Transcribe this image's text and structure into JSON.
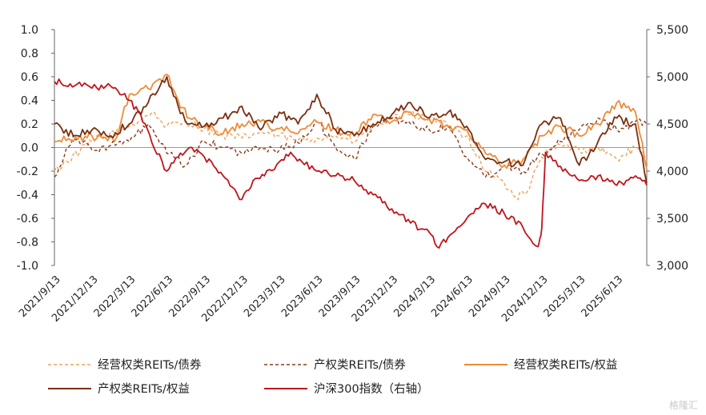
{
  "chart_data": {
    "type": "line",
    "x": [
      "2021/9/13",
      "2021/12/13",
      "2022/3/13",
      "2022/6/13",
      "2022/9/13",
      "2022/12/13",
      "2023/3/13",
      "2023/6/13",
      "2023/9/13",
      "2023/12/13",
      "2024/3/13",
      "2024/6/13",
      "2024/9/13",
      "2024/12/13",
      "2025/3/13",
      "2025/6/13"
    ],
    "x_end": "2025/9/5",
    "y_left": {
      "lim": [
        -1.0,
        1.0
      ],
      "ticks": [
        "1.0",
        "0.8",
        "0.6",
        "0.4",
        "0.2",
        "0.0",
        "-0.2",
        "-0.4",
        "-0.6",
        "-0.8",
        "-1.0"
      ]
    },
    "y_right": {
      "lim": [
        3000,
        5500
      ],
      "ticks": [
        "5,500",
        "5,000",
        "4,500",
        "4,000",
        "3,500",
        "3,000"
      ]
    },
    "legend_position": "bottom",
    "series": [
      {
        "name": "经营权类REITs/债券",
        "axis": "left",
        "color": "#F0A05A",
        "dash": "4,3",
        "values": [
          [
            0,
            -0.2
          ],
          [
            1,
            0.05
          ],
          [
            2,
            0.18
          ],
          [
            2.6,
            0.3
          ],
          [
            3,
            0.18
          ],
          [
            3.5,
            0.22
          ],
          [
            4,
            0.16
          ],
          [
            4.5,
            0.1
          ],
          [
            5,
            0.08
          ],
          [
            5.5,
            0.13
          ],
          [
            6,
            0.1
          ],
          [
            6.5,
            0.06
          ],
          [
            7,
            0.08
          ],
          [
            7.5,
            0.1
          ],
          [
            8,
            0.05
          ],
          [
            8.5,
            0.18
          ],
          [
            9,
            0.24
          ],
          [
            9.5,
            0.28
          ],
          [
            10,
            0.24
          ],
          [
            10.5,
            0.18
          ],
          [
            11,
            0.1
          ],
          [
            11.5,
            -0.2
          ],
          [
            12,
            -0.3
          ],
          [
            12.3,
            -0.42
          ],
          [
            12.6,
            -0.38
          ],
          [
            13,
            -0.08
          ],
          [
            13.5,
            0.02
          ],
          [
            14,
            -0.02
          ],
          [
            14.5,
            0.0
          ],
          [
            15,
            -0.1
          ],
          [
            15.5,
            0.0
          ],
          [
            15.8,
            -0.12
          ]
        ]
      },
      {
        "name": "产权类REITs/债券",
        "axis": "left",
        "color": "#8B3A1A",
        "dash": "4,3",
        "values": [
          [
            0,
            -0.25
          ],
          [
            0.5,
            0.1
          ],
          [
            1,
            -0.02
          ],
          [
            1.5,
            0.02
          ],
          [
            2,
            0.05
          ],
          [
            2.5,
            0.2
          ],
          [
            3,
            -0.05
          ],
          [
            3.5,
            -0.15
          ],
          [
            4,
            0.05
          ],
          [
            4.5,
            0.0
          ],
          [
            5,
            -0.05
          ],
          [
            5.5,
            0.0
          ],
          [
            6,
            -0.02
          ],
          [
            6.5,
            0.04
          ],
          [
            7,
            0.22
          ],
          [
            7.5,
            0.0
          ],
          [
            8,
            -0.1
          ],
          [
            8.5,
            0.18
          ],
          [
            9,
            0.25
          ],
          [
            9.5,
            0.2
          ],
          [
            10,
            0.15
          ],
          [
            10.5,
            0.18
          ],
          [
            11,
            -0.08
          ],
          [
            11.5,
            -0.25
          ],
          [
            12,
            -0.15
          ],
          [
            12.5,
            -0.2
          ],
          [
            13,
            -0.05
          ],
          [
            13.5,
            0.05
          ],
          [
            14,
            0.15
          ],
          [
            14.5,
            0.25
          ],
          [
            15,
            0.15
          ],
          [
            15.5,
            0.22
          ],
          [
            15.8,
            0.2
          ]
        ]
      },
      {
        "name": "经营权类REITs/权益",
        "axis": "left",
        "color": "#EE8B3A",
        "dash": "",
        "values": [
          [
            0,
            0.05
          ],
          [
            1,
            0.1
          ],
          [
            1.6,
            0.05
          ],
          [
            2,
            0.45
          ],
          [
            2.5,
            0.5
          ],
          [
            3,
            0.62
          ],
          [
            3.3,
            0.4
          ],
          [
            3.6,
            0.25
          ],
          [
            4,
            0.18
          ],
          [
            4.5,
            0.12
          ],
          [
            5,
            0.2
          ],
          [
            5.5,
            0.22
          ],
          [
            6,
            0.16
          ],
          [
            6.5,
            0.12
          ],
          [
            7,
            0.22
          ],
          [
            7.5,
            0.15
          ],
          [
            8,
            0.1
          ],
          [
            8.5,
            0.28
          ],
          [
            9,
            0.22
          ],
          [
            9.5,
            0.3
          ],
          [
            10,
            0.24
          ],
          [
            10.5,
            0.18
          ],
          [
            11,
            0.15
          ],
          [
            11.5,
            -0.05
          ],
          [
            12,
            -0.15
          ],
          [
            12.5,
            -0.1
          ],
          [
            13,
            0.1
          ],
          [
            13.5,
            0.18
          ],
          [
            14,
            0.1
          ],
          [
            14.5,
            0.2
          ],
          [
            15,
            0.38
          ],
          [
            15.5,
            0.3
          ],
          [
            15.8,
            -0.18
          ]
        ]
      },
      {
        "name": "产权类REITs/权益",
        "axis": "left",
        "color": "#7A2E0E",
        "dash": "",
        "values": [
          [
            0,
            0.2
          ],
          [
            0.5,
            0.1
          ],
          [
            1,
            0.15
          ],
          [
            1.5,
            0.1
          ],
          [
            2,
            0.2
          ],
          [
            2.5,
            0.38
          ],
          [
            3,
            0.6
          ],
          [
            3.3,
            0.35
          ],
          [
            3.6,
            0.2
          ],
          [
            4,
            0.18
          ],
          [
            4.5,
            0.25
          ],
          [
            5,
            0.35
          ],
          [
            5.5,
            0.15
          ],
          [
            6,
            0.3
          ],
          [
            6.5,
            0.2
          ],
          [
            7,
            0.45
          ],
          [
            7.5,
            0.15
          ],
          [
            8,
            0.1
          ],
          [
            8.5,
            0.2
          ],
          [
            9,
            0.28
          ],
          [
            9.5,
            0.38
          ],
          [
            10,
            0.25
          ],
          [
            10.5,
            0.3
          ],
          [
            11,
            0.18
          ],
          [
            11.5,
            -0.1
          ],
          [
            12,
            -0.12
          ],
          [
            12.5,
            -0.15
          ],
          [
            13,
            0.2
          ],
          [
            13.5,
            0.25
          ],
          [
            14,
            -0.15
          ],
          [
            14.5,
            0.05
          ],
          [
            15,
            0.25
          ],
          [
            15.5,
            0.2
          ],
          [
            15.8,
            -0.3
          ]
        ]
      },
      {
        "name": "沪深300指数（右轴）",
        "axis": "right",
        "color": "#C0141C",
        "dash": "",
        "values": [
          [
            0,
            4950
          ],
          [
            0.6,
            4920
          ],
          [
            1,
            4880
          ],
          [
            1.5,
            4900
          ],
          [
            2,
            4750
          ],
          [
            2.3,
            4600
          ],
          [
            2.6,
            4300
          ],
          [
            3,
            4000
          ],
          [
            3.3,
            4150
          ],
          [
            3.6,
            4250
          ],
          [
            4,
            4150
          ],
          [
            4.5,
            3950
          ],
          [
            5,
            3700
          ],
          [
            5.3,
            3900
          ],
          [
            5.6,
            3950
          ],
          [
            6,
            4100
          ],
          [
            6.3,
            4200
          ],
          [
            6.6,
            4100
          ],
          [
            7,
            4000
          ],
          [
            7.5,
            3950
          ],
          [
            8,
            3900
          ],
          [
            8.5,
            3750
          ],
          [
            9,
            3600
          ],
          [
            9.5,
            3450
          ],
          [
            10,
            3350
          ],
          [
            10.2,
            3200
          ],
          [
            10.5,
            3300
          ],
          [
            11,
            3500
          ],
          [
            11.3,
            3600
          ],
          [
            11.5,
            3650
          ],
          [
            12,
            3550
          ],
          [
            12.5,
            3400
          ],
          [
            12.9,
            3200
          ],
          [
            13,
            3400
          ],
          [
            13.1,
            4200
          ],
          [
            13.5,
            4050
          ],
          [
            14,
            3900
          ],
          [
            14.5,
            3950
          ],
          [
            15,
            3850
          ],
          [
            15.5,
            3950
          ],
          [
            15.8,
            3850
          ]
        ]
      }
    ]
  },
  "watermark": "格隆汇"
}
